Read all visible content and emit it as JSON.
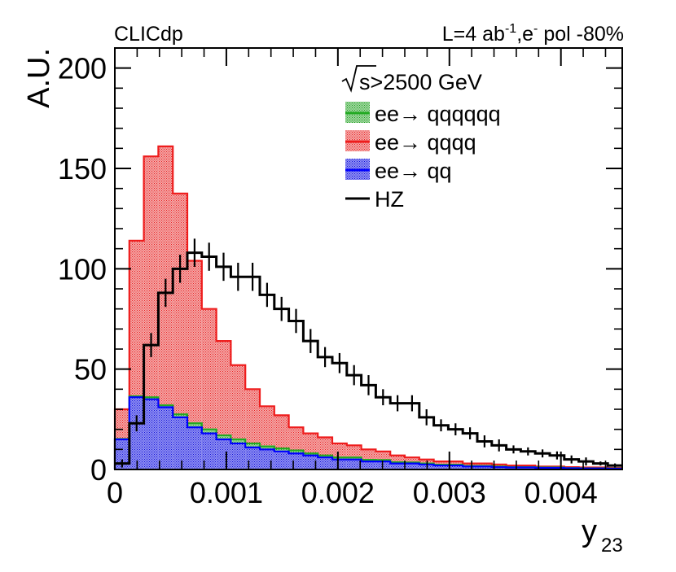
{
  "chart_data": {
    "type": "bar",
    "style": "stacked-histogram-with-overlay",
    "experiment_label": "CLICdp",
    "lumi_prefix": "L=4 ab",
    "lumi_exp": "-1",
    "beam_prefix": ",e",
    "beam_exp": "-",
    "beam_suffix": " pol -80%",
    "xlabel": "y",
    "xlabel_sub": "23",
    "ylabel": "A.U.",
    "xlim": [
      0,
      0.00455
    ],
    "ylim": [
      0,
      210
    ],
    "bin_width": 0.00013,
    "x_ticks": [
      {
        "value": 0,
        "label": "0"
      },
      {
        "value": 0.001,
        "label": "0.001"
      },
      {
        "value": 0.002,
        "label": "0.002"
      },
      {
        "value": 0.003,
        "label": "0.003"
      },
      {
        "value": 0.004,
        "label": "0.004"
      }
    ],
    "y_ticks": [
      {
        "value": 0,
        "label": "0"
      },
      {
        "value": 50,
        "label": "50"
      },
      {
        "value": 100,
        "label": "100"
      },
      {
        "value": 150,
        "label": "150"
      },
      {
        "value": 200,
        "label": "200"
      }
    ],
    "legend": {
      "header_root": "s",
      "header_rest": ">2500 GeV",
      "position": "top-right"
    },
    "series": [
      {
        "name": "ee→ qq",
        "role": "stack",
        "fill": "#1e1ee6",
        "line": "#0000ff",
        "values": [
          15,
          36,
          35,
          31,
          26,
          21,
          18,
          15,
          13,
          11,
          10,
          9,
          8,
          7,
          6,
          5,
          5,
          4,
          4,
          3,
          3,
          2.5,
          2,
          2,
          1.5,
          1.5,
          1.2,
          1,
          1,
          0.8,
          0.8,
          0.6,
          0.5,
          0.5,
          0.4
        ]
      },
      {
        "name": "ee→ qqqqqq",
        "role": "stack",
        "fill": "#2ca02c",
        "line": "#22aa22",
        "values": [
          0.2,
          0.5,
          1,
          1,
          1.5,
          2,
          2,
          2,
          2,
          2,
          1.5,
          1.5,
          1.5,
          1,
          1,
          1,
          1,
          0.8,
          0.7,
          0.6,
          0.5,
          0.5,
          0.4,
          0.4,
          0.3,
          0.3,
          0.3,
          0.2,
          0.2,
          0.2,
          0.2,
          0.1,
          0.1,
          0.1,
          0.1
        ]
      },
      {
        "name": "ee→ qqqq",
        "role": "stack",
        "fill": "#ee3b3b",
        "line": "#ee1c1c",
        "values": [
          14.8,
          77.5,
          120,
          129,
          110,
          81,
          60,
          47,
          37,
          27,
          20,
          16.5,
          11.5,
          10,
          9,
          7,
          6,
          5.2,
          4.3,
          3.4,
          2.5,
          2,
          1.6,
          1.6,
          1.2,
          1.2,
          1,
          0.8,
          0.8,
          0.5,
          0.5,
          0.5,
          0.4,
          0.4,
          0.3
        ]
      },
      {
        "name": "HZ",
        "role": "overlay",
        "line": "#000000",
        "values": [
          3,
          23,
          62,
          88,
          100,
          108,
          106,
          101,
          96,
          96,
          87,
          80,
          74,
          64,
          56,
          53,
          47,
          42,
          36,
          33,
          33,
          26,
          22,
          20,
          18,
          14,
          12,
          10,
          9,
          8,
          7,
          5,
          4,
          3,
          2
        ],
        "errors": [
          2,
          4,
          6,
          7,
          7,
          7,
          7,
          7,
          7,
          7,
          6,
          6,
          6,
          6,
          5,
          5,
          5,
          5,
          4,
          4,
          4,
          4,
          3,
          3,
          3,
          3,
          3,
          2,
          2,
          2,
          2,
          2,
          2,
          1,
          1
        ]
      }
    ]
  }
}
